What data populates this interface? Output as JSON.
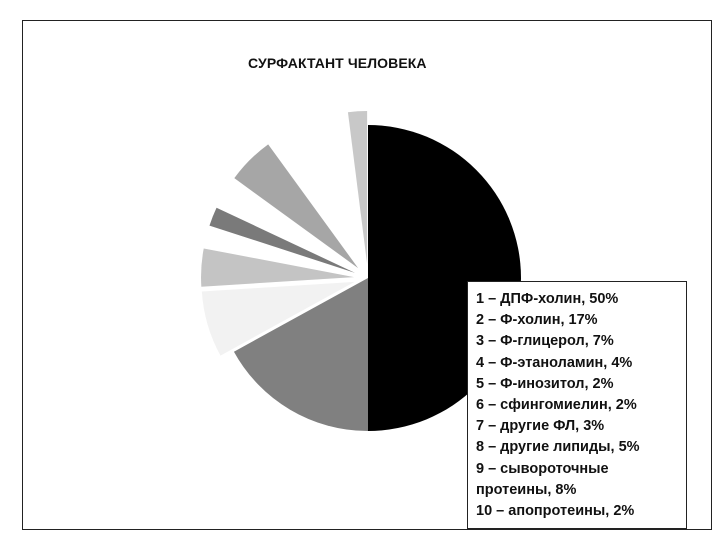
{
  "chart_data": {
    "type": "pie",
    "title": "СУРФАКТАНТ ЧЕЛОВЕКА",
    "slices": [
      {
        "id": "1",
        "value": 50,
        "color": "#000000",
        "exploded": false
      },
      {
        "id": "2",
        "value": 17,
        "color": "#808080",
        "exploded": false
      },
      {
        "id": "3",
        "value": 7,
        "color": "#f2f2f2",
        "exploded": true
      },
      {
        "id": "4",
        "value": 4,
        "color": "#c4c4c4",
        "exploded": true
      },
      {
        "id": "5",
        "value": 2,
        "color": "#ffffff",
        "exploded": true
      },
      {
        "id": "6",
        "value": 2,
        "color": "#7a7a7a",
        "exploded": true
      },
      {
        "id": "7",
        "value": 3,
        "color": "#ffffff",
        "exploded": true
      },
      {
        "id": "8",
        "value": 5,
        "color": "#a6a6a6",
        "exploded": true
      },
      {
        "id": "9",
        "value": 8,
        "color": "#ffffff",
        "exploded": true
      },
      {
        "id": "10",
        "value": 2,
        "color": "#c8c8c8",
        "exploded": true
      }
    ],
    "legend": {
      "placement": "bottom-right",
      "items": [
        "1 – ДПФ-холин, 50%",
        "2 – Ф-холин, 17%",
        "3 – Ф-глицерол, 7%",
        "4 – Ф-этаноламин, 4%",
        "5 – Ф-инозитол, 2%",
        "6 – сфингомиелин, 2%",
        "7 – другие ФЛ, 3%",
        "8 – другие липиды, 5%",
        "9 – сывороточные протеины, 8%",
        "10 – апопротеины, 2%"
      ]
    }
  }
}
